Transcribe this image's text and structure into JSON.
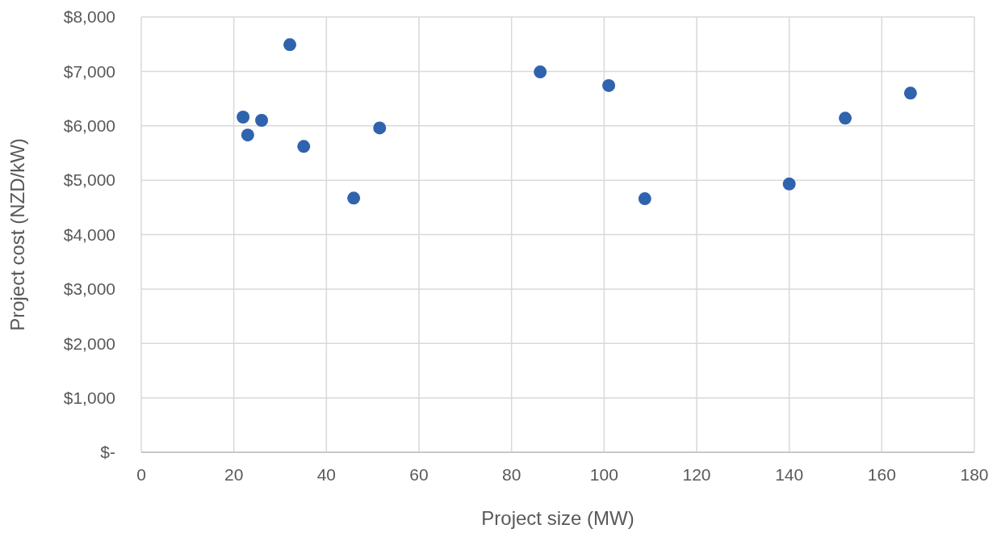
{
  "chart_data": {
    "type": "scatter",
    "xlabel": "Project size (MW)",
    "ylabel": "Project cost (NZD/kW)",
    "x": [
      22,
      23,
      26,
      32.1,
      35.1,
      45.9,
      51.5,
      86.2,
      101,
      108.8,
      140,
      152.1,
      166.2
    ],
    "values": [
      6160,
      5830,
      6100,
      7490,
      5620,
      4670,
      5960,
      6990,
      6740,
      4660,
      4930,
      6140,
      6600
    ],
    "color": "#2f63ae",
    "marker": "circle",
    "grid": true,
    "xlim": [
      0,
      180
    ],
    "xticks": [
      0,
      20,
      40,
      60,
      80,
      100,
      120,
      140,
      160,
      180
    ],
    "ylim": [
      0,
      8000
    ],
    "yticks": [
      {
        "value": 0,
        "label": "$-"
      },
      {
        "value": 1000,
        "label": "$1,000"
      },
      {
        "value": 2000,
        "label": "$2,000"
      },
      {
        "value": 3000,
        "label": "$3,000"
      },
      {
        "value": 4000,
        "label": "$4,000"
      },
      {
        "value": 5000,
        "label": "$5,000"
      },
      {
        "value": 6000,
        "label": "$6,000"
      },
      {
        "value": 7000,
        "label": "$7,000"
      },
      {
        "value": 8000,
        "label": "$8,000"
      }
    ]
  }
}
